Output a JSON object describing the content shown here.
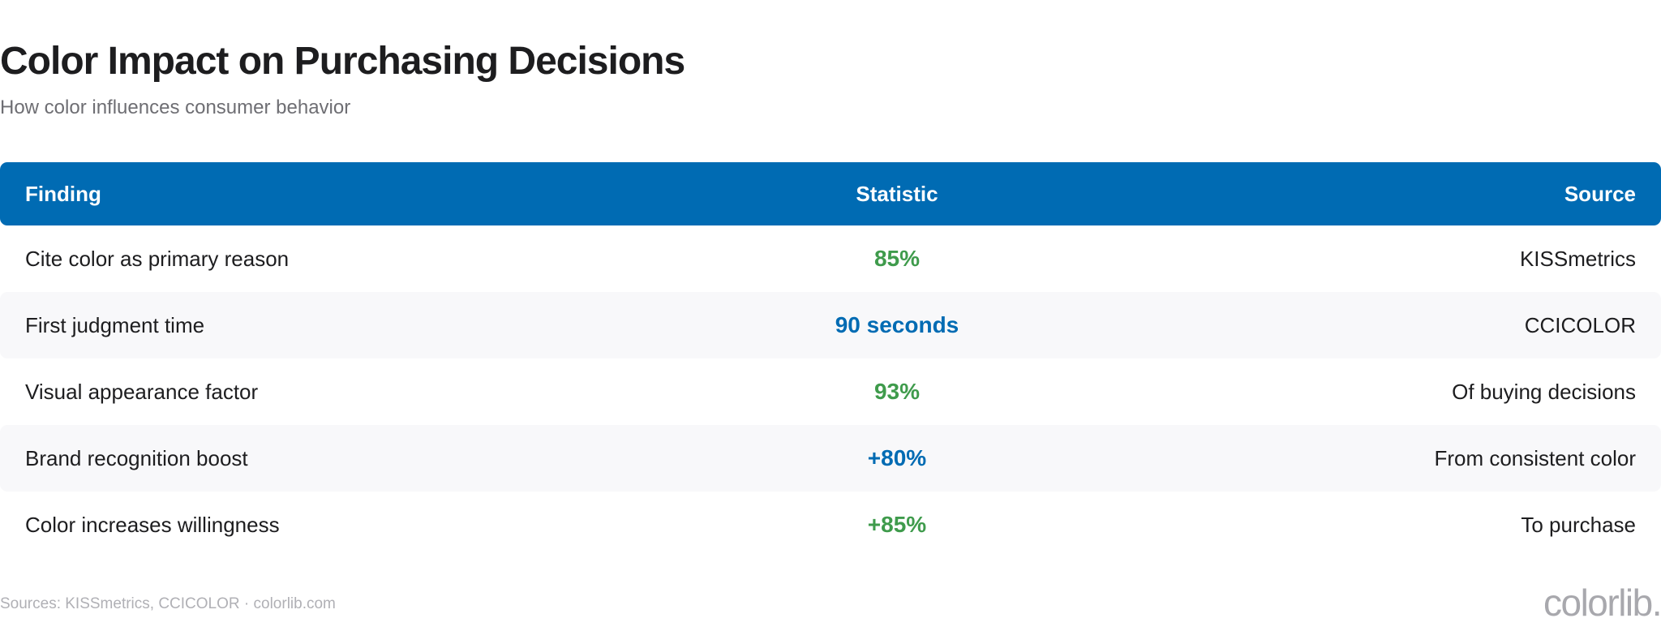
{
  "header": {
    "title": "Color Impact on Purchasing Decisions",
    "subtitle": "How color influences consumer behavior"
  },
  "colors": {
    "header_bg": "#006bb3",
    "stat_green": "#3f9b4c",
    "stat_blue": "#006bb3",
    "row_alt_bg": "#f8f8fa"
  },
  "chart_data": {
    "type": "table",
    "columns": [
      "Finding",
      "Statistic",
      "Source"
    ],
    "rows": [
      {
        "finding": "Cite color as primary reason",
        "statistic": "85%",
        "source": "KISSmetrics",
        "stat_color": "#3f9b4c"
      },
      {
        "finding": "First judgment time",
        "statistic": "90 seconds",
        "source": "CCICOLOR",
        "stat_color": "#006bb3"
      },
      {
        "finding": "Visual appearance factor",
        "statistic": "93%",
        "source": "Of buying decisions",
        "stat_color": "#3f9b4c"
      },
      {
        "finding": "Brand recognition boost",
        "statistic": "+80%",
        "source": "From consistent color",
        "stat_color": "#006bb3"
      },
      {
        "finding": "Color increases willingness",
        "statistic": "+85%",
        "source": "To purchase",
        "stat_color": "#3f9b4c"
      }
    ]
  },
  "footer": {
    "sources": "Sources: KISSmetrics, CCICOLOR · colorlib.com",
    "brand": "colorlib."
  }
}
